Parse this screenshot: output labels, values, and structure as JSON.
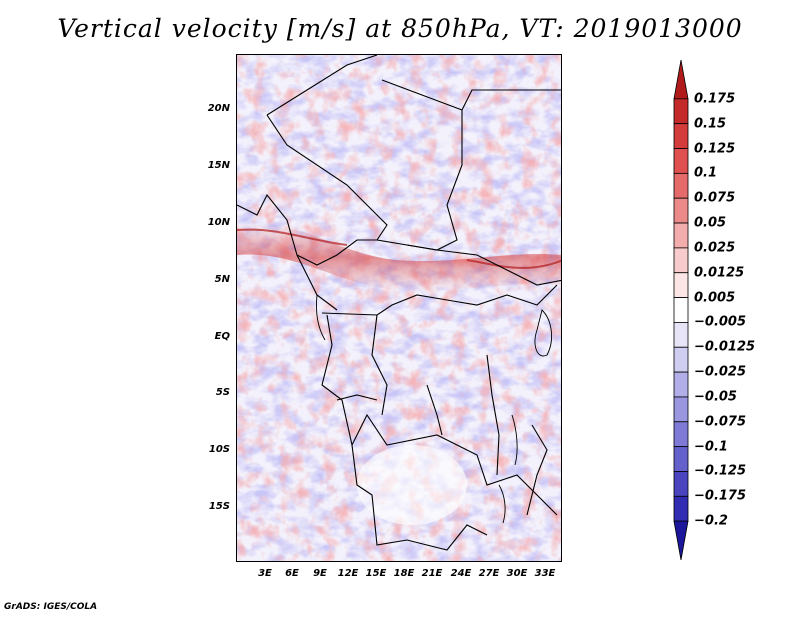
{
  "title": "Vertical velocity [m/s] at 850hPa, VT: 2019013000",
  "credit": "GrADS: IGES/COLA",
  "map": {
    "lat_labels": [
      "20N",
      "15N",
      "10N",
      "5N",
      "EQ",
      "5S",
      "10S",
      "15S"
    ],
    "lon_labels": [
      "3E",
      "6E",
      "9E",
      "12E",
      "15E",
      "18E",
      "21E",
      "24E",
      "27E",
      "30E",
      "33E"
    ],
    "field": "vertical velocity at 850hPa",
    "units": "m/s"
  },
  "colorbar": {
    "labels": [
      "0.175",
      "0.15",
      "0.125",
      "0.1",
      "0.075",
      "0.05",
      "0.025",
      "0.0125",
      "0.005",
      "−0.005",
      "−0.0125",
      "−0.025",
      "−0.05",
      "−0.075",
      "−0.1",
      "−0.125",
      "−0.175",
      "−0.2"
    ],
    "colors": [
      "#b01a1a",
      "#c52a2a",
      "#d43b3b",
      "#e05050",
      "#e56a6a",
      "#ec8a8a",
      "#f3adad",
      "#f8cccc",
      "#fbe5e5",
      "#ffffff",
      "#e6e4f6",
      "#cfcdf0",
      "#b2afe8",
      "#9a96e0",
      "#7f7ad6",
      "#6460cc",
      "#4a45bf",
      "#312cb2",
      "#1c169a"
    ]
  }
}
